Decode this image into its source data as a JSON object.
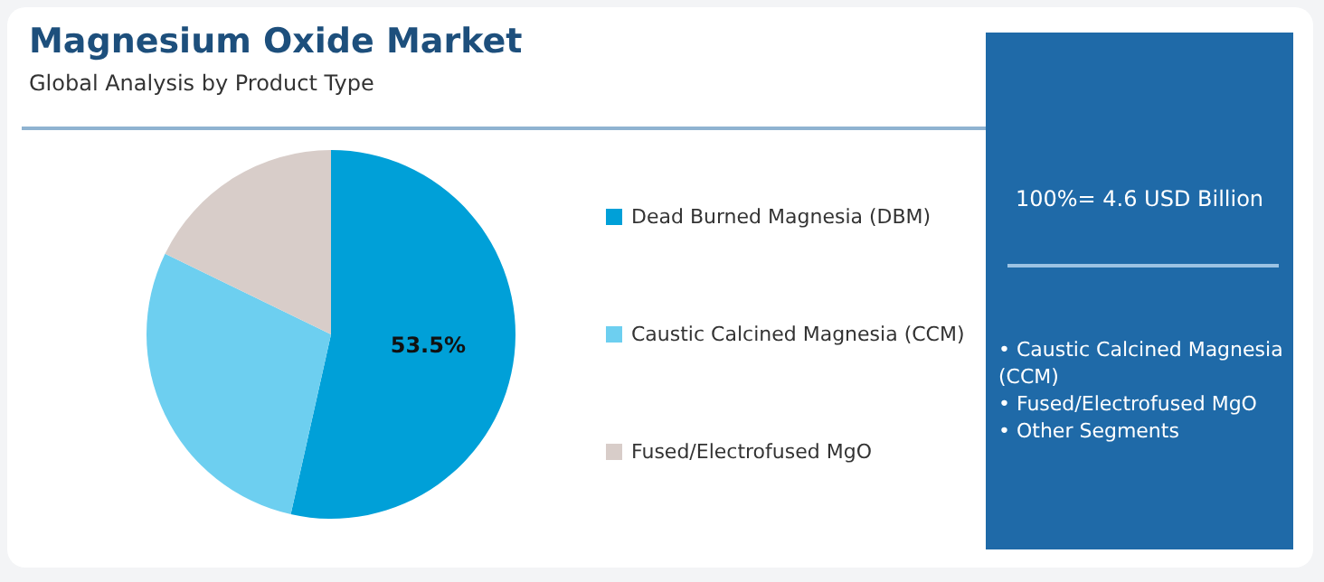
{
  "chart_data": {
    "type": "pie",
    "title": "Magnesium Oxide Market",
    "subtitle": "Global Analysis by Product Type",
    "categories": [
      "Dead Burned Magnesia (DBM)",
      "Caustic Calcined Magnesia (CCM)",
      "Fused/Electrofused MgO"
    ],
    "values": [
      53.5,
      28.7,
      17.8
    ],
    "colors": [
      "#00a0d8",
      "#6dcff0",
      "#d8cdc9"
    ],
    "value_labels": [
      "53.5%",
      null,
      null
    ],
    "legend": "right",
    "annotations": [
      "100%= 4.6 USD Billion",
      "• Caustic Calcined Magnesia (CCM)",
      "• Fused/Electrofused MgO",
      "• Other Segments"
    ]
  }
}
